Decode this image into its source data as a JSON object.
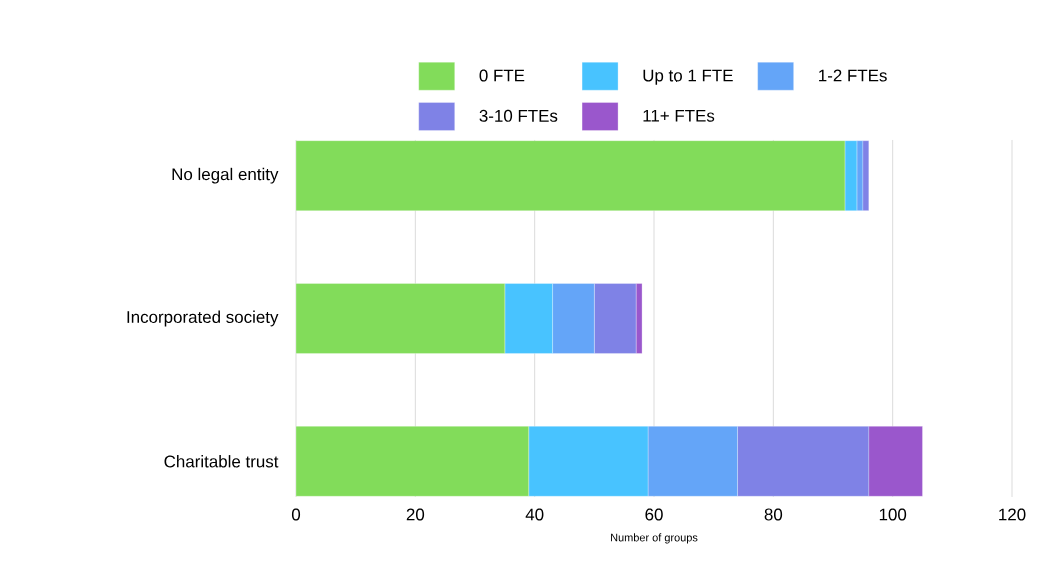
{
  "chart_data": {
    "type": "bar",
    "orientation": "horizontal",
    "stacked": true,
    "xlabel": "Number of groups",
    "categories": [
      "No legal entity",
      "Incorporated society",
      "Charitable trust"
    ],
    "series": [
      {
        "name": "0 FTE",
        "color": "#82dc5a",
        "values": [
          92,
          35,
          39
        ]
      },
      {
        "name": "Up to 1 FTE",
        "color": "#48c3ff",
        "values": [
          2,
          8,
          20
        ]
      },
      {
        "name": "1-2 FTEs",
        "color": "#64a5f8",
        "values": [
          1,
          7,
          15
        ]
      },
      {
        "name": "3-10 FTEs",
        "color": "#7f82e6",
        "values": [
          1,
          7,
          22
        ]
      },
      {
        "name": "11+ FTEs",
        "color": "#9a57cc",
        "values": [
          0,
          1,
          9
        ]
      }
    ],
    "xlim": [
      0,
      120
    ],
    "xticks": [
      0,
      20,
      40,
      60,
      80,
      100,
      120
    ],
    "grid": "x",
    "legend": "top"
  }
}
